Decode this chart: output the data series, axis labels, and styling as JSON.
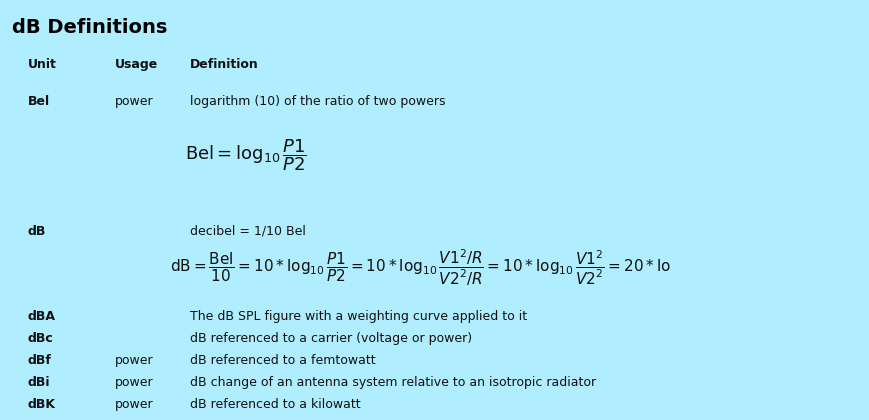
{
  "title": "dB Definitions",
  "background_color": "#b0eeff",
  "title_color": "#000000",
  "text_color": "#111111",
  "header_row": {
    "unit": "Unit",
    "usage": "Usage",
    "definition": "Definition"
  },
  "bottom_rows": [
    {
      "unit": "dBA",
      "usage": "",
      "definition": "The dB SPL figure with a weighting curve applied to it"
    },
    {
      "unit": "dBc",
      "usage": "",
      "definition": "dB referenced to a carrier (voltage or power)"
    },
    {
      "unit": "dBf",
      "usage": "power",
      "definition": "dB referenced to a femtowatt"
    },
    {
      "unit": "dBi",
      "usage": "power",
      "definition": "dB change of an antenna system relative to an isotropic radiator"
    },
    {
      "unit": "dBK",
      "usage": "power",
      "definition": "dB referenced to a kilowatt"
    }
  ],
  "col_unit": 0.028,
  "col_usage": 0.135,
  "col_def": 0.225,
  "title_fontsize": 14,
  "header_fontsize": 9,
  "body_fontsize": 9,
  "formula_bel_fontsize": 13,
  "formula_db_fontsize": 11
}
